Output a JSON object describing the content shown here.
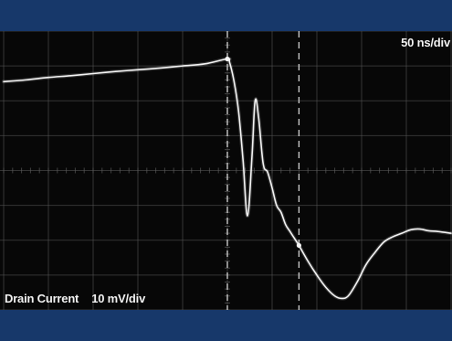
{
  "colors": {
    "background_band": "#17386a",
    "screen": "#070707",
    "grid": "#5a5a5a",
    "trace": "#f4f4f4",
    "cursor": "#e8e8e8"
  },
  "labels": {
    "timebase": "50 ns/div",
    "channel_name": "Drain Current",
    "channel_scale": "10 mV/div"
  },
  "chart_data": {
    "type": "line",
    "title": "",
    "xlabel": "",
    "ylabel": "",
    "x_units": "div",
    "y_units": "div",
    "xlim": [
      0,
      10
    ],
    "ylim": [
      -4,
      4
    ],
    "grid": true,
    "grid_divisions": {
      "x": 10,
      "y": 8
    },
    "cursors_x": [
      5.0,
      6.6
    ],
    "series": [
      {
        "x": [
          0.0,
          0.5,
          1.0,
          1.5,
          2.0,
          2.5,
          3.0,
          3.5,
          4.0,
          4.5,
          5.0,
          5.05,
          5.15,
          5.25,
          5.35,
          5.45,
          5.55,
          5.62,
          5.7,
          5.8,
          5.9,
          6.0,
          6.1,
          6.2,
          6.3,
          6.4,
          6.5,
          6.6,
          6.8,
          7.0,
          7.2,
          7.4,
          7.55,
          7.7,
          7.9,
          8.1,
          8.3,
          8.5,
          8.7,
          8.9,
          9.1,
          9.3,
          9.5,
          9.7,
          10.0
        ],
        "y": [
          2.55,
          2.6,
          2.67,
          2.72,
          2.78,
          2.84,
          2.89,
          2.94,
          3.0,
          3.06,
          3.2,
          3.1,
          2.55,
          1.7,
          0.3,
          -1.3,
          0.4,
          2.0,
          1.5,
          0.2,
          -0.05,
          -0.5,
          -1.0,
          -1.2,
          -1.55,
          -1.75,
          -1.95,
          -2.15,
          -2.6,
          -3.0,
          -3.35,
          -3.6,
          -3.67,
          -3.6,
          -3.2,
          -2.7,
          -2.35,
          -2.05,
          -1.9,
          -1.8,
          -1.7,
          -1.68,
          -1.73,
          -1.75,
          -1.8
        ]
      }
    ]
  }
}
